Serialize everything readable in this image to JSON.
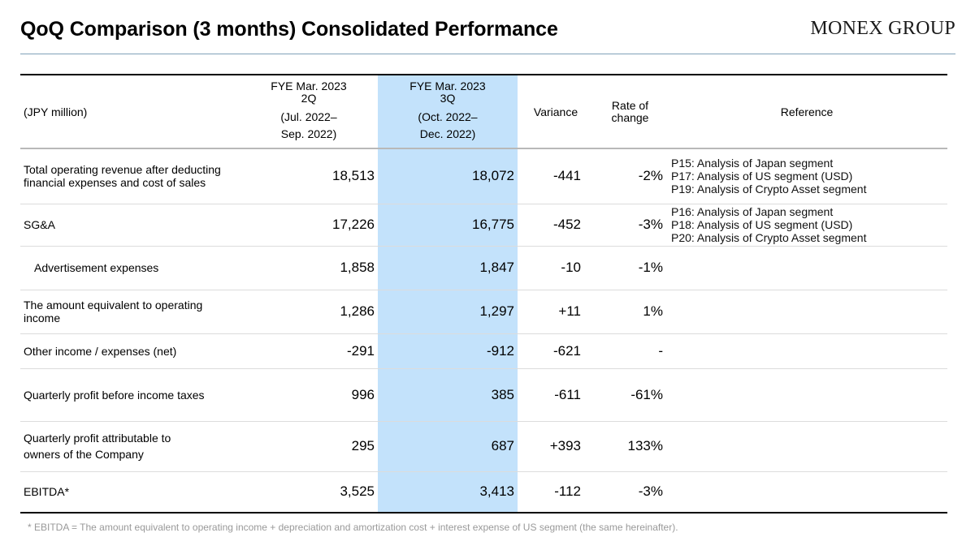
{
  "header": {
    "title": "QoQ Comparison (3 months) Consolidated Performance",
    "logo": "MONEX GROUP"
  },
  "table": {
    "unit": "(JPY million)",
    "columns": {
      "q2": [
        "FYE Mar. 2023",
        "2Q",
        "(Jul. 2022–",
        "Sep. 2022)"
      ],
      "q3": [
        "FYE Mar. 2023",
        "3Q",
        "(Oct. 2022–",
        "Dec. 2022)"
      ],
      "variance": "Variance",
      "rate": [
        "Rate of",
        "change"
      ],
      "reference": "Reference"
    },
    "rows": [
      {
        "label": [
          "Total operating revenue after deducting",
          "financial expenses and cost of sales"
        ],
        "q2": "18,513",
        "q3": "18,072",
        "variance": "-441",
        "rate": "-2%",
        "reference": [
          "P15: Analysis of Japan segment",
          "P17: Analysis of US segment (USD)",
          "P19: Analysis of Crypto Asset segment"
        ]
      },
      {
        "label": [
          "SG&A"
        ],
        "q2": "17,226",
        "q3": "16,775",
        "variance": "-452",
        "rate": "-3%",
        "reference": [
          "P16: Analysis of Japan segment",
          "P18: Analysis of US segment (USD)",
          "P20: Analysis of Crypto Asset segment"
        ]
      },
      {
        "label": [
          "Advertisement expenses"
        ],
        "q2": "1,858",
        "q3": "1,847",
        "variance": "-10",
        "rate": "-1%",
        "reference": []
      },
      {
        "label": [
          "The amount equivalent to operating",
          "income"
        ],
        "q2": "1,286",
        "q3": "1,297",
        "variance": "+11",
        "rate": "1%",
        "reference": []
      },
      {
        "label": [
          "Other income / expenses (net)"
        ],
        "q2": "-291",
        "q3": "-912",
        "variance": "-621",
        "rate": "-",
        "reference": []
      },
      {
        "label": [
          "Quarterly profit before income taxes"
        ],
        "q2": "996",
        "q3": "385",
        "variance": "-611",
        "rate": "-61%",
        "reference": []
      },
      {
        "label": [
          "Quarterly profit attributable to",
          "owners of the Company"
        ],
        "q2": "295",
        "q3": "687",
        "variance": "+393",
        "rate": "133%",
        "reference": []
      },
      {
        "label": [
          "EBITDA*"
        ],
        "q2": "3,525",
        "q3": "3,413",
        "variance": "-112",
        "rate": "-3%",
        "reference": []
      }
    ]
  },
  "footnote": "* EBITDA = The amount equivalent to operating income + depreciation and amortization cost + interest expense of US segment (the same hereinafter).",
  "colors": {
    "highlight_column": "#c3e2fb",
    "title_rule": "#7fa2b8",
    "footnote_text": "#999999"
  }
}
